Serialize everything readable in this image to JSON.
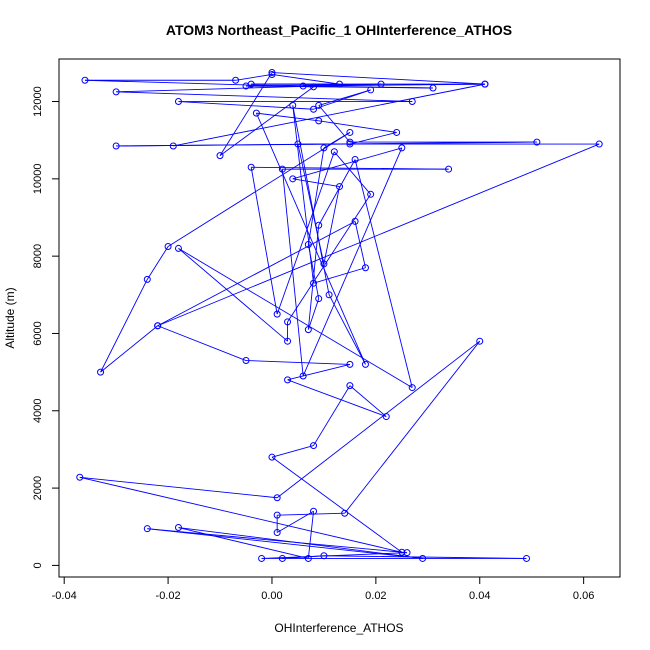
{
  "chart_data": {
    "type": "line",
    "title": "ATOM3 Northeast_Pacific_1 OHInterference_ATHOS",
    "xlabel": "OHInterference_ATHOS",
    "ylabel": "Altitude (m)",
    "xlim": [
      -0.041,
      0.067
    ],
    "ylim": [
      -300,
      13100
    ],
    "xticks": [
      -0.04,
      -0.02,
      0.0,
      0.02,
      0.04,
      0.06
    ],
    "xtick_labels": [
      "-0.04",
      "-0.02",
      "0.00",
      "0.02",
      "0.04",
      "0.06"
    ],
    "yticks": [
      0,
      2000,
      4000,
      6000,
      8000,
      10000,
      12000
    ],
    "ytick_labels": [
      "0",
      "2000",
      "4000",
      "6000",
      "8000",
      "10000",
      "12000"
    ],
    "grid": false,
    "series": [
      {
        "name": "",
        "color": "#0000ff",
        "marker": "open-circle",
        "points": [
          [
            0.002,
            180
          ],
          [
            0.01,
            250
          ],
          [
            0.049,
            180
          ],
          [
            -0.002,
            180
          ],
          [
            0.026,
            330
          ],
          [
            -0.024,
            950
          ],
          [
            0.029,
            180
          ],
          [
            -0.018,
            980
          ],
          [
            0.007,
            180
          ],
          [
            0.008,
            1400
          ],
          [
            0.001,
            850
          ],
          [
            0.001,
            1300
          ],
          [
            0.014,
            1350
          ],
          [
            0.04,
            5800
          ],
          [
            0.001,
            1750
          ],
          [
            -0.037,
            2280
          ],
          [
            0.025,
            340
          ],
          [
            0.0,
            2800
          ],
          [
            0.008,
            3100
          ],
          [
            0.015,
            4650
          ],
          [
            0.022,
            3850
          ],
          [
            0.003,
            4800
          ],
          [
            0.015,
            5200
          ],
          [
            -0.005,
            5300
          ],
          [
            -0.022,
            6200
          ],
          [
            -0.033,
            5000
          ],
          [
            -0.024,
            7400
          ],
          [
            -0.02,
            8250
          ],
          [
            0.015,
            11200
          ],
          [
            0.01,
            10800
          ],
          [
            0.007,
            8300
          ],
          [
            0.009,
            6900
          ],
          [
            0.007,
            6100
          ],
          [
            0.009,
            8800
          ],
          [
            0.016,
            10500
          ],
          [
            0.027,
            4600
          ],
          [
            -0.018,
            8200
          ],
          [
            0.003,
            5800
          ],
          [
            0.003,
            6300
          ],
          [
            0.019,
            9600
          ],
          [
            0.012,
            10700
          ],
          [
            0.001,
            6500
          ],
          [
            -0.004,
            10300
          ],
          [
            0.034,
            10250
          ],
          [
            0.002,
            10250
          ],
          [
            0.006,
            4900
          ],
          [
            0.025,
            10800
          ],
          [
            0.004,
            10000
          ],
          [
            0.013,
            9800
          ],
          [
            0.01,
            7800
          ],
          [
            0.005,
            10900
          ],
          [
            0.063,
            10900
          ],
          [
            -0.022,
            6200
          ],
          [
            0.016,
            8900
          ],
          [
            0.018,
            7700
          ],
          [
            0.008,
            7300
          ],
          [
            0.004,
            11900
          ],
          [
            0.011,
            7000
          ],
          [
            0.018,
            5200
          ],
          [
            -0.003,
            11700
          ],
          [
            0.009,
            11500
          ],
          [
            0.024,
            11200
          ],
          [
            0.015,
            10900
          ],
          [
            -0.03,
            10850
          ],
          [
            0.051,
            10950
          ],
          [
            0.015,
            10950
          ],
          [
            0.009,
            11900
          ],
          [
            0.019,
            12300
          ],
          [
            0.008,
            11800
          ],
          [
            -0.018,
            12000
          ],
          [
            0.027,
            12000
          ],
          [
            -0.03,
            12250
          ],
          [
            0.021,
            12450
          ],
          [
            -0.005,
            12400
          ],
          [
            0.031,
            12350
          ],
          [
            0.006,
            12400
          ],
          [
            0.041,
            12450
          ],
          [
            -0.004,
            12450
          ],
          [
            0.013,
            12450
          ],
          [
            0.0,
            12700
          ],
          [
            -0.007,
            12550
          ],
          [
            -0.036,
            12550
          ],
          [
            0.008,
            12380
          ],
          [
            -0.01,
            10600
          ],
          [
            0.0,
            12750
          ],
          [
            0.041,
            12450
          ],
          [
            -0.019,
            10850
          ]
        ]
      }
    ]
  }
}
